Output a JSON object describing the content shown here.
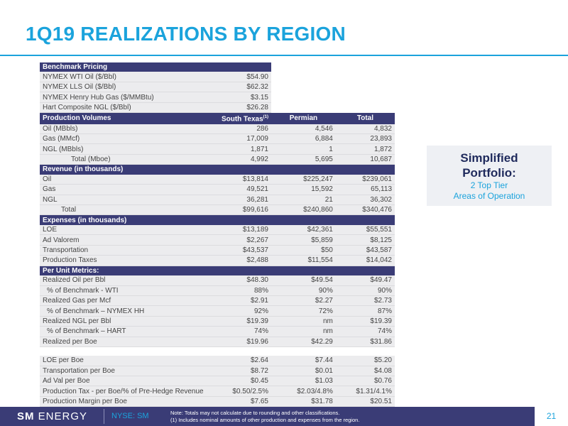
{
  "title": "1Q19 REALIZATIONS BY REGION",
  "benchmark": {
    "header": "Benchmark Pricing",
    "rows": [
      {
        "label": "NYMEX WTI Oil ($/Bbl)",
        "value": "$54.90"
      },
      {
        "label": "NYMEX LLS Oil ($/Bbl)",
        "value": "$62.32"
      },
      {
        "label": "NYMEX Henry Hub Gas ($/MMBtu)",
        "value": "$3.15"
      },
      {
        "label": "Hart Composite NGL ($/Bbl)",
        "value": "$26.28"
      }
    ]
  },
  "production": {
    "header": "Production Volumes",
    "col_south_texas": "South Texas",
    "col_sup": "(1)",
    "col_permian": "Permian",
    "col_total": "Total",
    "rows": [
      {
        "label": "Oil (MBbls)",
        "st": "286",
        "pm": "4,546",
        "tot": "4,832"
      },
      {
        "label": "Gas (MMcf)",
        "st": "17,009",
        "pm": "6,884",
        "tot": "23,893"
      },
      {
        "label": "NGL (MBbls)",
        "st": "1,871",
        "pm": "1",
        "tot": "1,872"
      }
    ],
    "total": {
      "label": "Total (Mboe)",
      "st": "4,992",
      "pm": "5,695",
      "tot": "10,687"
    }
  },
  "revenue": {
    "header": "Revenue (in thousands)",
    "rows": [
      {
        "label": "Oil",
        "st": "$13,814",
        "pm": "$225,247",
        "tot": "$239,061"
      },
      {
        "label": "Gas",
        "st": "49,521",
        "pm": "15,592",
        "tot": "65,113"
      },
      {
        "label": "NGL",
        "st": "36,281",
        "pm": "21",
        "tot": "36,302"
      }
    ],
    "total": {
      "label": "Total",
      "st": "$99,616",
      "pm": "$240,860",
      "tot": "$340,476"
    }
  },
  "expenses": {
    "header": "Expenses (in thousands)",
    "rows": [
      {
        "label": "LOE",
        "st": "$13,189",
        "pm": "$42,361",
        "tot": "$55,551"
      },
      {
        "label": "Ad Valorem",
        "st": "$2,267",
        "pm": "$5,859",
        "tot": "$8,125"
      },
      {
        "label": "Transportation",
        "st": "$43,537",
        "pm": "$50",
        "tot": "$43,587"
      },
      {
        "label": "Production Taxes",
        "st": "$2,488",
        "pm": "$11,554",
        "tot": "$14,042"
      }
    ]
  },
  "per_unit": {
    "header": "Per Unit Metrics:",
    "rows": [
      {
        "label": "Realized Oil per Bbl",
        "st": "$48.30",
        "pm": "$49.54",
        "tot": "$49.47"
      },
      {
        "label": "% of Benchmark - WTI",
        "st": "88%",
        "pm": "90%",
        "tot": "90%"
      },
      {
        "label": "Realized Gas per Mcf",
        "st": "$2.91",
        "pm": "$2.27",
        "tot": "$2.73"
      },
      {
        "label": "% of Benchmark – NYMEX HH",
        "st": "92%",
        "pm": "72%",
        "tot": "87%"
      },
      {
        "label": "Realized NGL per Bbl",
        "st": "$19.39",
        "pm": "nm",
        "tot": "$19.39"
      },
      {
        "label": "% of Benchmark – HART",
        "st": "74%",
        "pm": "nm",
        "tot": "74%"
      },
      {
        "label": "Realized per Boe",
        "st": "$19.96",
        "pm": "$42.29",
        "tot": "$31.86"
      }
    ],
    "rows2": [
      {
        "label": "LOE per Boe",
        "st": "$2.64",
        "pm": "$7.44",
        "tot": "$5.20"
      },
      {
        "label": "Transportation per Boe",
        "st": "$8.72",
        "pm": "$0.01",
        "tot": "$4.08"
      },
      {
        "label": "Ad Val per Boe",
        "st": "$0.45",
        "pm": "$1.03",
        "tot": "$0.76"
      },
      {
        "label": "Production Tax - per Boe/% of Pre-Hedge Revenue",
        "st": "$0.50/2.5%",
        "pm": "$2.03/4.8%",
        "tot": "$1.31/4.1%"
      },
      {
        "label": "Production Margin per Boe",
        "st": "$7.65",
        "pm": "$31.78",
        "tot": "$20.51"
      }
    ]
  },
  "callout": {
    "line1": "Simplified",
    "line2": "Portfolio:",
    "line3": "2 Top Tier",
    "line4": "Areas of Operation"
  },
  "footer": {
    "logo_bold": "SM",
    "logo_rest": "ENERGY",
    "ticker": "NYSE: SM",
    "note1": "Note: Totals may not calculate due to rounding and other classifications.",
    "note2": "(1)     Includes nominal amounts of other production and expenses from the region.",
    "page": "21"
  },
  "colors": {
    "accent": "#1ba3dc",
    "header_bg": "#3a3c76",
    "row_bg": "#ececee"
  }
}
